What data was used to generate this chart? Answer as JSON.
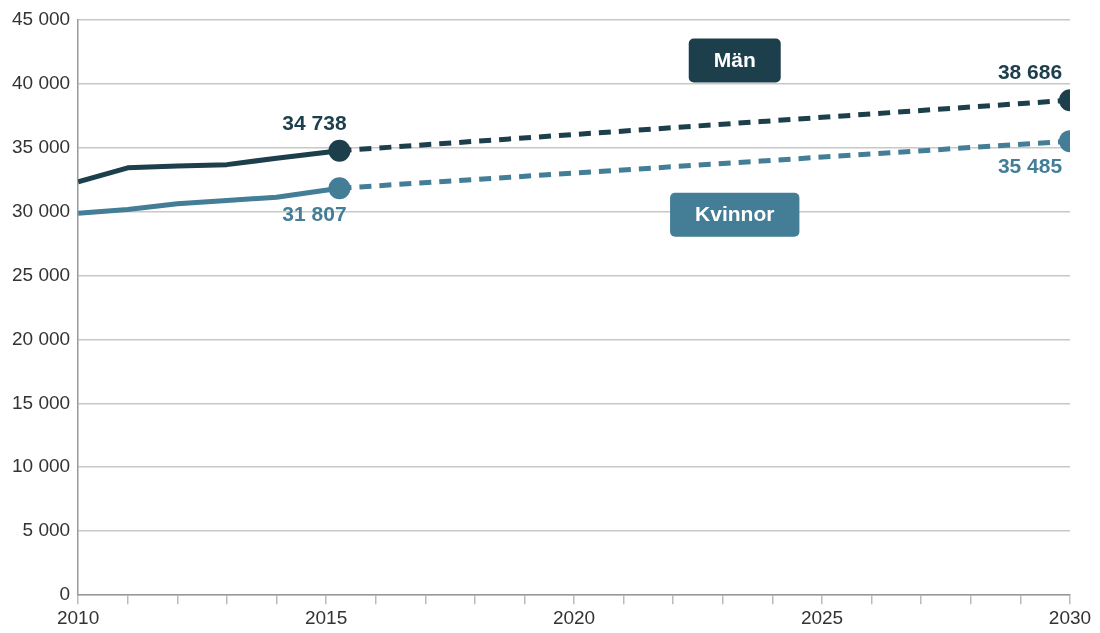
{
  "chart_data": {
    "type": "line",
    "xlim": [
      2010,
      2030
    ],
    "ylim": [
      0,
      45000
    ],
    "xticks": [
      2010,
      {
        "value": 2011,
        "label": null
      },
      {
        "value": 2012,
        "label": null
      },
      {
        "value": 2013,
        "label": null
      },
      {
        "value": 2014,
        "label": null
      },
      2015,
      {
        "value": 2016,
        "label": null
      },
      {
        "value": 2017,
        "label": null
      },
      {
        "value": 2018,
        "label": null
      },
      {
        "value": 2019,
        "label": null
      },
      2020,
      {
        "value": 2021,
        "label": null
      },
      {
        "value": 2022,
        "label": null
      },
      {
        "value": 2023,
        "label": null
      },
      {
        "value": 2024,
        "label": null
      },
      2025,
      {
        "value": 2026,
        "label": null
      },
      {
        "value": 2027,
        "label": null
      },
      {
        "value": 2028,
        "label": null
      },
      {
        "value": 2029,
        "label": null
      },
      2030
    ],
    "yticks": [
      {
        "value": 0,
        "label": "0"
      },
      {
        "value": 5000,
        "label": "5 000"
      },
      {
        "value": 10000,
        "label": "10 000"
      },
      {
        "value": 15000,
        "label": "15 000"
      },
      {
        "value": 20000,
        "label": "20 000"
      },
      {
        "value": 25000,
        "label": "25 000"
      },
      {
        "value": 30000,
        "label": "30 000"
      },
      {
        "value": 35000,
        "label": "35 000"
      },
      {
        "value": 40000,
        "label": "40 000"
      },
      {
        "value": 45000,
        "label": "45 000"
      }
    ],
    "grid": "y",
    "legend": false,
    "series": [
      {
        "name": "Män",
        "color": "#1c3f4b",
        "x": [
          2010,
          2011,
          2012,
          2013,
          2014,
          2015.27
        ],
        "values": [
          32300,
          33400,
          33550,
          33650,
          34150,
          34738
        ],
        "marker": "none",
        "line_style": "solid"
      },
      {
        "color": "#1c3f4b",
        "x": [
          2015.27,
          2030
        ],
        "values": [
          34738,
          38686
        ],
        "marker": "circle",
        "line_style": "dashed",
        "value_labels": [
          "34 738",
          "38 686"
        ]
      },
      {
        "name": "Kvinnor",
        "color": "#437d96",
        "x": [
          2010,
          2011,
          2012,
          2013,
          2014,
          2015.27
        ],
        "values": [
          29850,
          30150,
          30600,
          30850,
          31100,
          31807
        ],
        "marker": "none",
        "line_style": "solid"
      },
      {
        "color": "#437d96",
        "x": [
          2015.27,
          2030
        ],
        "values": [
          31807,
          35485
        ],
        "marker": "circle",
        "line_style": "dashed",
        "value_labels": [
          "31 807",
          "35 485"
        ]
      }
    ]
  }
}
